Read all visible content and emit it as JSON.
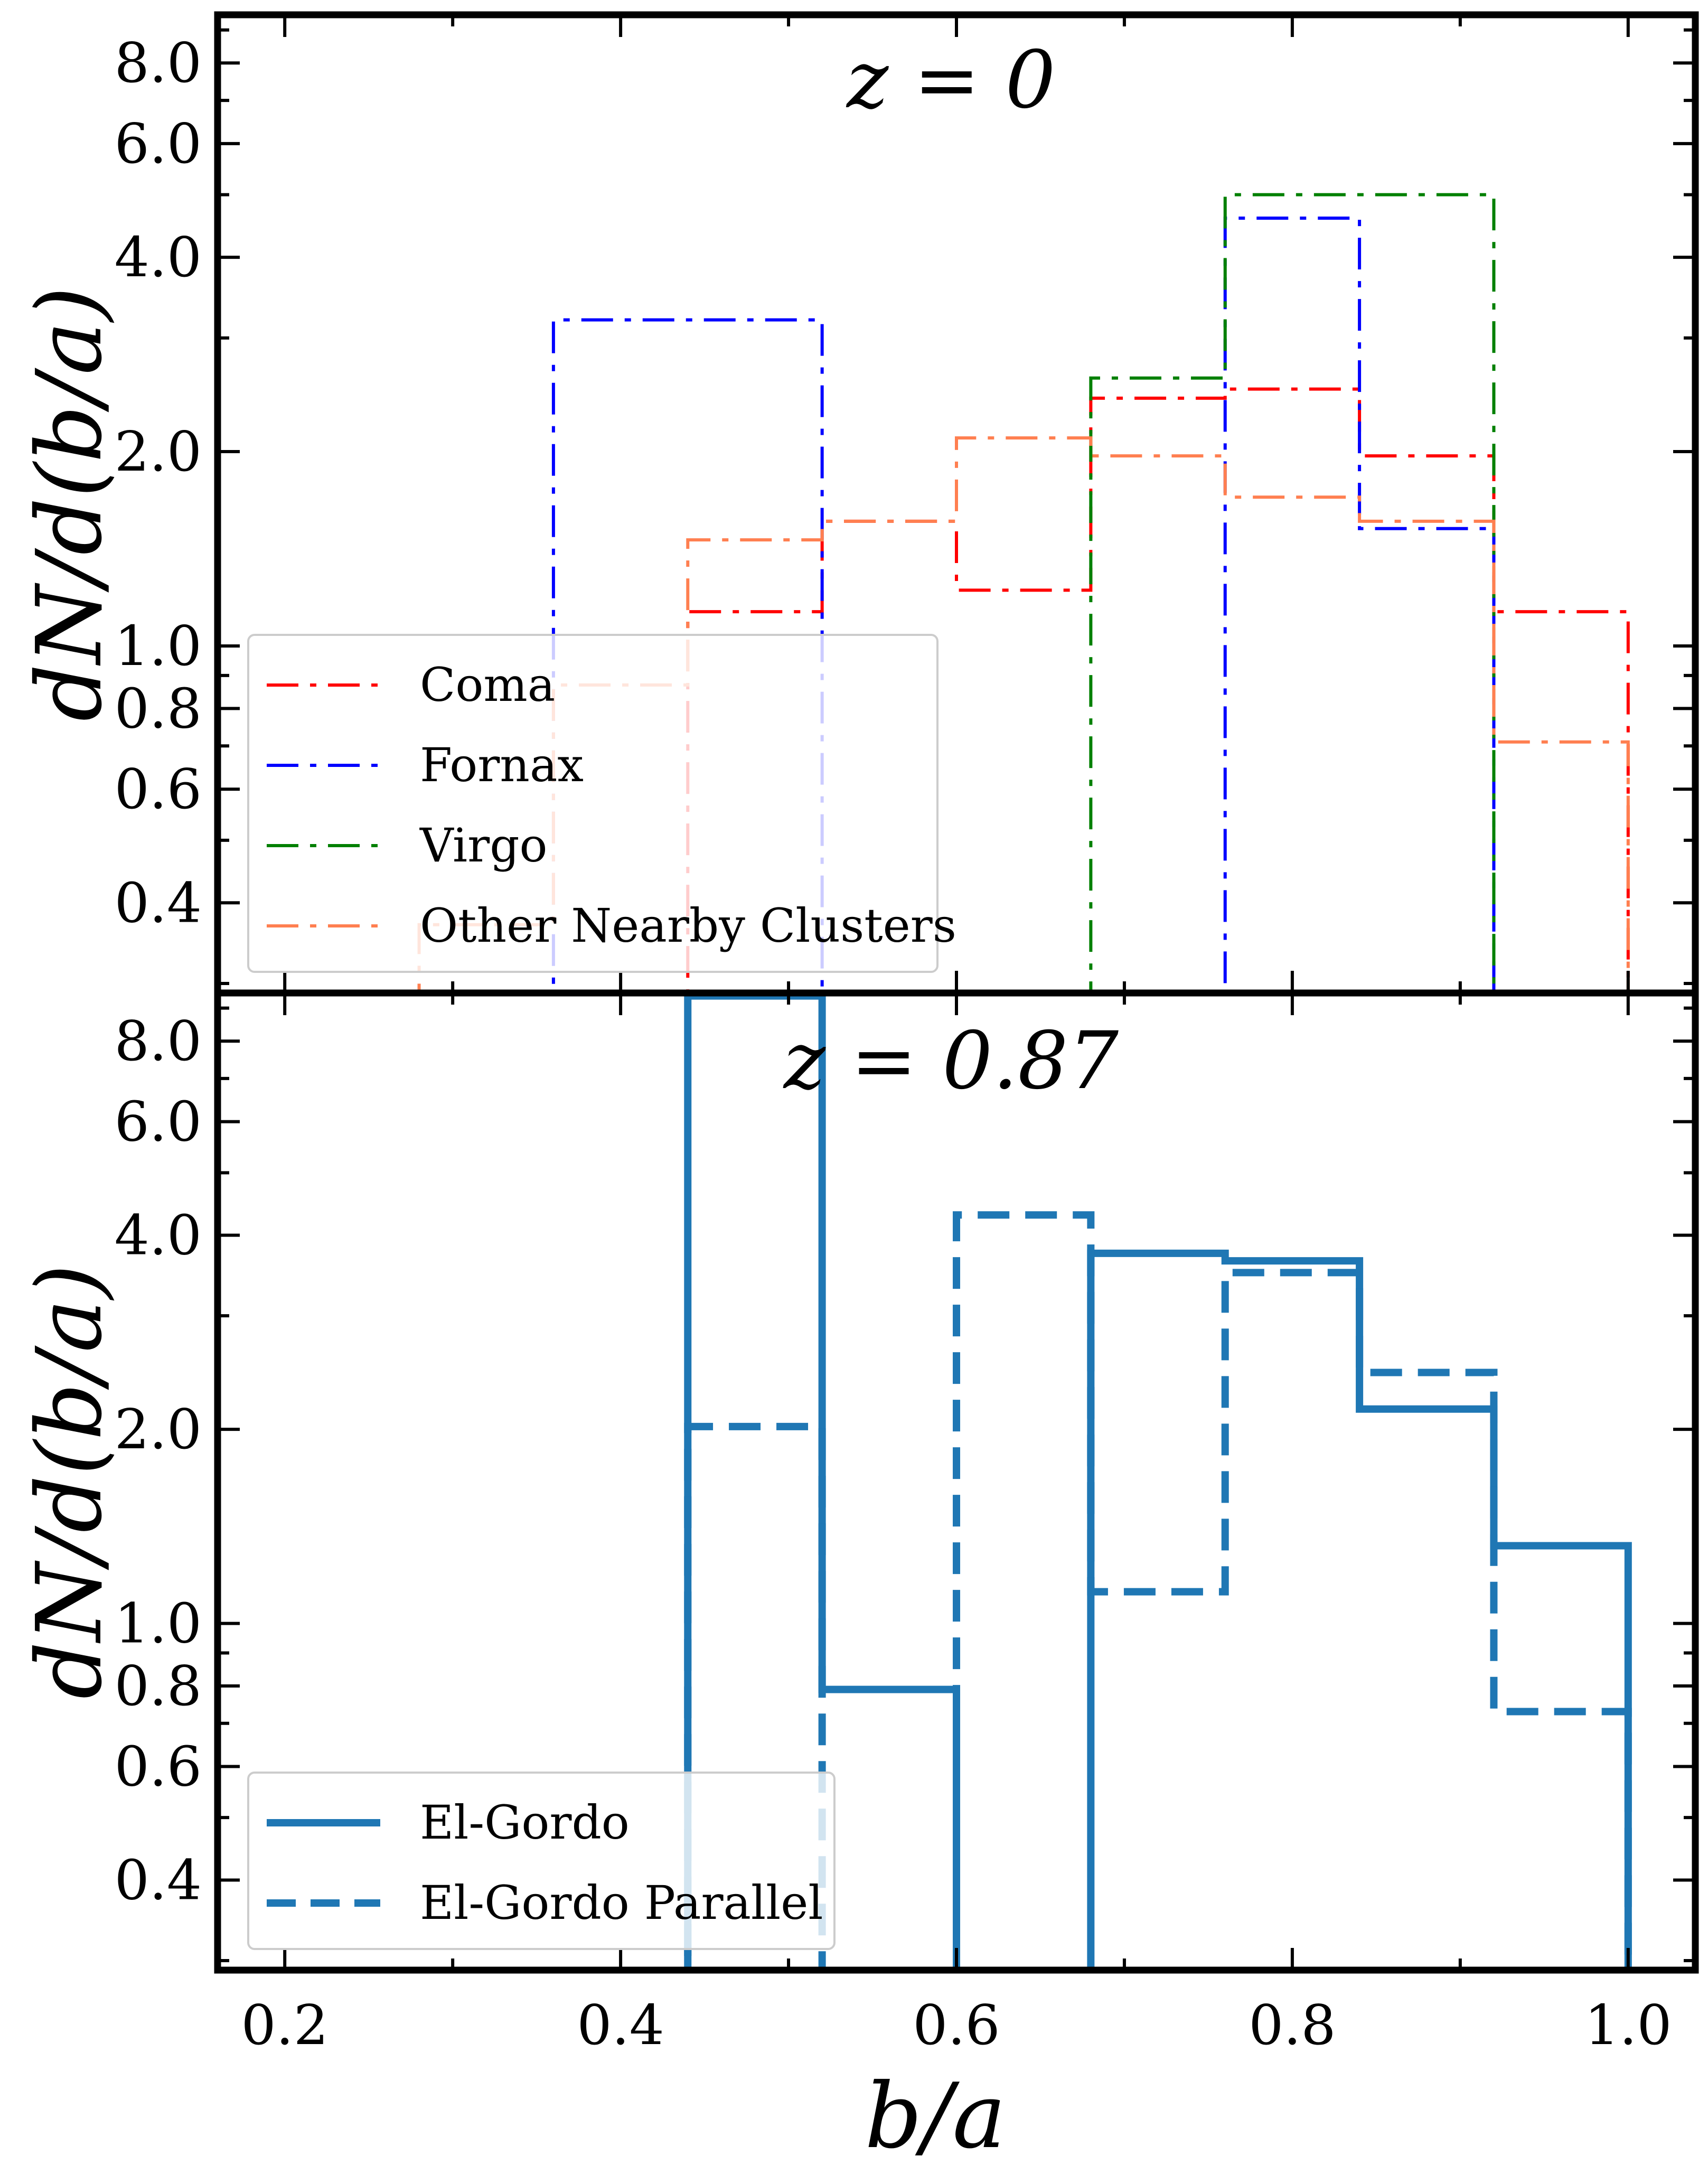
{
  "chart_data": [
    {
      "type": "histogram-step",
      "title": "z = 0",
      "xlabel": "",
      "ylabel": "dN/d(b/a)",
      "xlim": [
        0.16,
        1.04
      ],
      "ylim": [
        0.29,
        9.5
      ],
      "yscale": "log",
      "yticks": [
        0.4,
        0.6,
        0.8,
        1.0,
        2.0,
        4.0,
        6.0,
        8.0
      ],
      "ytick_labels": [
        "0.4",
        "0.6",
        "0.8",
        "1.0",
        "2.0",
        "4.0",
        "6.0",
        "8.0"
      ],
      "legend_position": "lower-left",
      "bin_edges": [
        0.2,
        0.28,
        0.36,
        0.44,
        0.52,
        0.6,
        0.68,
        0.76,
        0.84,
        0.92,
        1.0
      ],
      "series": [
        {
          "name": "Coma",
          "color": "#ff0000",
          "linestyle": "dashdot",
          "values": [
            0,
            0,
            0,
            1.13,
            1.56,
            1.22,
            2.42,
            2.5,
            1.97,
            1.13
          ]
        },
        {
          "name": "Fornax",
          "color": "#0000ff",
          "linestyle": "dashdot",
          "values": [
            0,
            0,
            3.2,
            3.2,
            0,
            0,
            0,
            4.6,
            1.52,
            0
          ]
        },
        {
          "name": "Virgo",
          "color": "#008000",
          "linestyle": "dashdot",
          "values": [
            0,
            0,
            0,
            0,
            0,
            0,
            2.6,
            5.0,
            5.0,
            0
          ]
        },
        {
          "name": "Other Nearby Clusters",
          "color": "#ff7f50",
          "linestyle": "dashdot",
          "values": [
            0,
            0.37,
            0.87,
            1.46,
            1.56,
            2.1,
            1.97,
            1.7,
            1.56,
            0.71
          ]
        }
      ]
    },
    {
      "type": "histogram-step",
      "title": "z = 0.87",
      "xlabel": "b/a",
      "ylabel": "dN/d(b/a)",
      "xlim": [
        0.16,
        1.04
      ],
      "ylim": [
        0.29,
        9.5
      ],
      "yscale": "log",
      "xticks": [
        0.2,
        0.4,
        0.6,
        0.8,
        1.0
      ],
      "xtick_labels": [
        "0.2",
        "0.4",
        "0.6",
        "0.8",
        "1.0"
      ],
      "yticks": [
        0.4,
        0.6,
        0.8,
        1.0,
        2.0,
        4.0,
        6.0,
        8.0
      ],
      "ytick_labels": [
        "0.4",
        "0.6",
        "0.8",
        "1.0",
        "2.0",
        "4.0",
        "6.0",
        "8.0"
      ],
      "legend_position": "lower-left",
      "bin_edges": [
        0.2,
        0.28,
        0.36,
        0.44,
        0.52,
        0.6,
        0.68,
        0.76,
        0.84,
        0.92,
        1.0
      ],
      "series": [
        {
          "name": "El-Gordo",
          "color": "#1f77b4",
          "linestyle": "solid",
          "values": [
            0,
            0,
            0,
            9.4,
            0.79,
            0,
            3.75,
            3.65,
            2.15,
            1.32
          ]
        },
        {
          "name": "El-Gordo Parallel",
          "color": "#1f77b4",
          "linestyle": "dashed",
          "values": [
            0,
            0,
            0,
            2.02,
            0,
            4.3,
            1.12,
            3.5,
            2.45,
            0.73
          ]
        }
      ]
    }
  ]
}
